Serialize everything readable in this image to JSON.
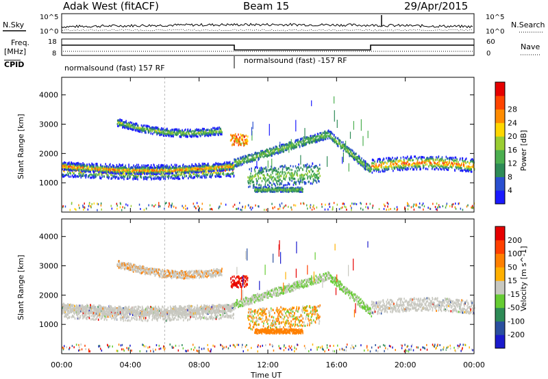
{
  "header": {
    "station": "Adak West (fitACF)",
    "beam": "Beam 15",
    "date": "29/Apr/2015"
  },
  "strip": {
    "nsky_label": "N.Sky",
    "nsearch_label": "N.Search",
    "freq_label_1": "Freq.",
    "freq_label_2": "[MHz]",
    "nave_label": "Nave",
    "cpid_label": "CPID",
    "noise_left_ticks": [
      "10^5",
      "10^0"
    ],
    "noise_right_ticks": [
      "10^5",
      "10^0"
    ],
    "freq_ticks": [
      "18",
      "8"
    ],
    "nave_ticks": [
      "60",
      "0"
    ],
    "cpid_1": "normalsound (fast) 157 RF",
    "cpid_2": "normalsound (fast) -157 RF"
  },
  "colors": {
    "power_scale": [
      "#1a1aff",
      "#2a4fd0",
      "#2e8b57",
      "#4caf50",
      "#9acd32",
      "#ffd700",
      "#ff8c00",
      "#ff4500",
      "#e60000"
    ],
    "velocity_scale": [
      "#1a1acc",
      "#2a4f9f",
      "#2e8b57",
      "#66cc33",
      "#c8c8c0",
      "#ffb000",
      "#ff8000",
      "#ff4000",
      "#e60000"
    ],
    "ground_gray": "#c8c8c0"
  },
  "chart_data": [
    {
      "type": "heatmap",
      "title": "",
      "xlabel": "Time UT",
      "ylabel": "Slant Range [km]",
      "x_ticks": [
        "00:00",
        "04:00",
        "08:00",
        "12:00",
        "16:00",
        "20:00",
        "00:00"
      ],
      "y_ticks": [
        "1000",
        "2000",
        "3000",
        "4000"
      ],
      "ylim": [
        0,
        4600
      ],
      "colorbar": {
        "label": "Power [dB]",
        "ticks": [
          "4",
          "8",
          "12",
          "16",
          "20",
          "24",
          "28"
        ],
        "range": [
          0,
          32
        ]
      }
    },
    {
      "type": "heatmap",
      "title": "",
      "xlabel": "Time UT",
      "ylabel": "Slant Range [km]",
      "x_ticks": [
        "00:00",
        "04:00",
        "08:00",
        "12:00",
        "16:00",
        "20:00",
        "00:00"
      ],
      "y_ticks": [
        "1000",
        "2000",
        "3000",
        "4000"
      ],
      "ylim": [
        0,
        4600
      ],
      "colorbar": {
        "label": "Velocity [m s^-1]",
        "ticks": [
          "200",
          "100",
          "50",
          "15",
          "-15",
          "-50",
          "-100",
          "-200"
        ],
        "range": [
          -250,
          250
        ]
      }
    }
  ]
}
